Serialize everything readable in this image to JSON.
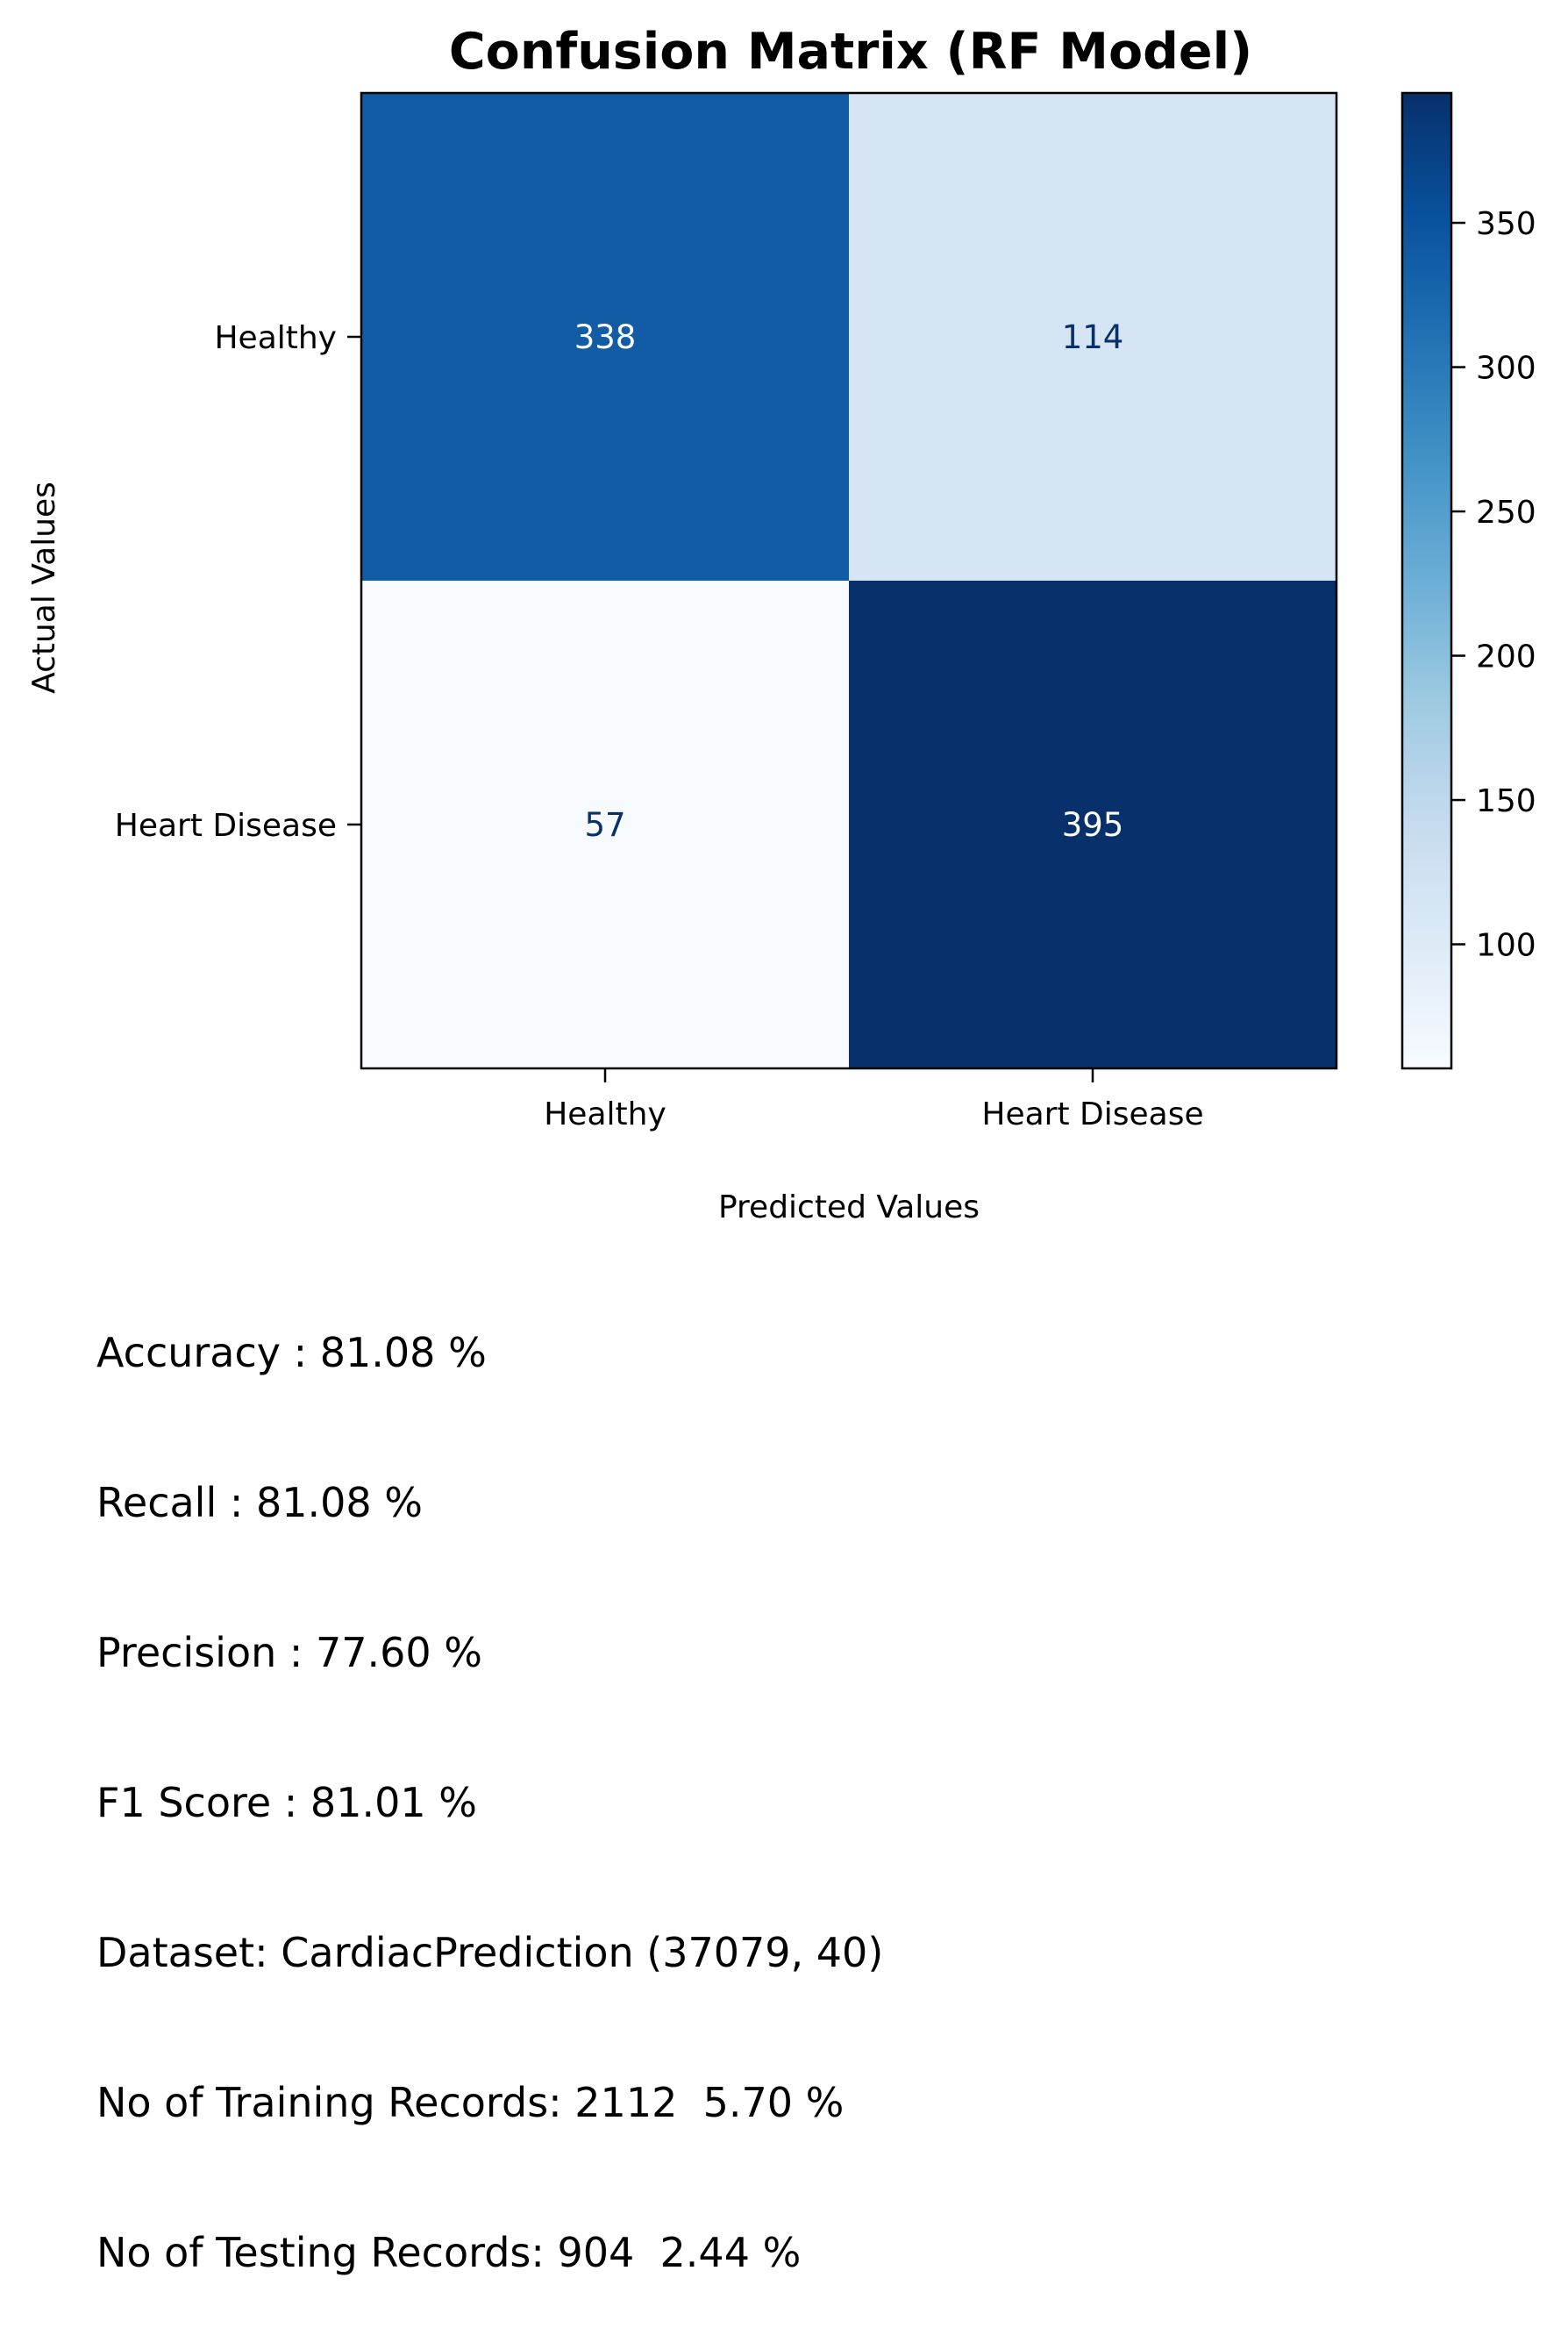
{
  "chart_data": {
    "type": "heatmap",
    "title": "Confusion Matrix (RF Model)",
    "xlabel": "Predicted Values",
    "ylabel": "Actual Values",
    "x_categories": [
      "Healthy",
      "Heart Disease"
    ],
    "y_categories": [
      "Healthy",
      "Heart Disease"
    ],
    "values": [
      [
        338,
        114
      ],
      [
        57,
        395
      ]
    ],
    "colormap": "Blues",
    "colorbar": {
      "min": 57,
      "max": 395,
      "ticks": [
        100,
        150,
        200,
        250,
        300,
        350
      ]
    }
  },
  "metrics": [
    "Accuracy : 81.08 %",
    "Recall : 81.08 %",
    "Precision : 77.60 %",
    "F1 Score : 81.01 %",
    "Dataset: CardiacPrediction (37079, 40)",
    "No of Training Records: 2112  5.70 %",
    "No of Testing Records: 904  2.44 %"
  ]
}
